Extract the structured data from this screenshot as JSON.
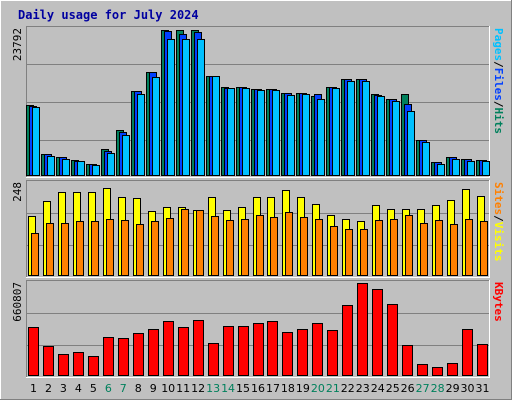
{
  "chart_data": {
    "type": "bar",
    "title": "Daily usage for July 2024",
    "x": [
      "1",
      "2",
      "3",
      "4",
      "5",
      "6",
      "7",
      "8",
      "9",
      "10",
      "11",
      "12",
      "13",
      "14",
      "15",
      "16",
      "17",
      "18",
      "19",
      "20",
      "21",
      "22",
      "23",
      "24",
      "25",
      "26",
      "27",
      "28",
      "29",
      "30",
      "31"
    ],
    "weekend_days": [
      "6",
      "7",
      "13",
      "14",
      "20",
      "21",
      "27",
      "28"
    ],
    "colors": {
      "background": "#c0c0c0",
      "plot": "#c0c0c0",
      "gridline": "#808080",
      "hits": "#00805c",
      "files": "#0040ff",
      "pages": "#00c0ff",
      "visits": "#ffff00",
      "sites": "#ff8000",
      "kbytes": "#ff0000",
      "title": "#0000a0",
      "weekday_label": "#000000",
      "weekend_label": "#00805c"
    },
    "panels": [
      {
        "name": "hits-files-pages",
        "ymax_label": "23792",
        "ylim": [
          0,
          23792
        ],
        "labels": [
          {
            "text": "Hits",
            "color": "#00805c"
          },
          {
            "text": "Files",
            "color": "#0040ff"
          },
          {
            "text": "Pages",
            "color": "#00c0ff"
          }
        ],
        "separator": "/",
        "series": [
          {
            "name": "Hits",
            "color": "#00805c",
            "values": [
              11500,
              3500,
              3000,
              2600,
              2000,
              4400,
              7500,
              13800,
              16800,
              23700,
              23700,
              23700,
              16200,
              14400,
              14400,
              14100,
              14100,
              13400,
              13500,
              13000,
              14400,
              15700,
              15700,
              13200,
              12500,
              13200,
              5800,
              2300,
              3100,
              2700,
              2600
            ]
          },
          {
            "name": "Files",
            "color": "#0040ff",
            "values": [
              11400,
              3500,
              3000,
              2500,
              1900,
              4000,
              7100,
              13800,
              16800,
              23500,
              23000,
              23300,
              16200,
              14300,
              14400,
              14100,
              14100,
              13400,
              13500,
              13200,
              14400,
              15700,
              15700,
              13100,
              12500,
              11600,
              5800,
              2300,
              3100,
              2700,
              2600
            ]
          },
          {
            "name": "Pages",
            "color": "#00c0ff",
            "values": [
              11100,
              3300,
              2800,
              2400,
              1800,
              3700,
              6700,
              13200,
              16100,
              22200,
              22200,
              22200,
              16200,
              14300,
              14300,
              14000,
              14000,
              13100,
              13200,
              12500,
              14200,
              15400,
              15400,
              13000,
              12200,
              10600,
              5500,
              2000,
              2800,
              2500,
              2400
            ]
          }
        ]
      },
      {
        "name": "visits-sites",
        "ymax_label": "248",
        "ylim": [
          0,
          248
        ],
        "labels": [
          {
            "text": "Visits",
            "color": "#ffff00"
          },
          {
            "text": "Sites",
            "color": "#ff8000"
          }
        ],
        "separator": "/",
        "series": [
          {
            "name": "Visits",
            "color": "#ffff00",
            "values": [
              160,
              199,
              225,
              225,
              225,
              236,
              212,
              207,
              174,
              185,
              185,
              176,
              212,
              175,
              185,
              212,
              212,
              230,
              212,
              192,
              163,
              152,
              148,
              190,
              180,
              180,
              180,
              190,
              202,
              232,
              213
            ]
          },
          {
            "name": "Sites",
            "color": "#ff8000",
            "values": [
              115,
              142,
              141,
              148,
              147,
              152,
              149,
              140,
              146,
              154,
              178,
              175,
              159,
              149,
              152,
              163,
              158,
              171,
              158,
              151,
              134,
              126,
              126,
              150,
              153,
              162,
              141,
              149,
              140,
              153,
              147
            ]
          }
        ]
      },
      {
        "name": "kbytes",
        "ymax_label": "660807",
        "ylim": [
          0,
          660807
        ],
        "labels": [
          {
            "text": "KBytes",
            "color": "#ff0000"
          }
        ],
        "separator": "",
        "series": [
          {
            "name": "KBytes",
            "color": "#ff0000",
            "values": [
              350000,
              216000,
              156000,
              168000,
              145000,
              276000,
              270000,
              306000,
              331000,
              390000,
              350000,
              398000,
              238000,
              357000,
              357000,
              377000,
              390000,
              312000,
              334000,
              377000,
              325000,
              508000,
              660000,
              615000,
              510000,
              220000,
              85000,
              66000,
              91000,
              335000,
              230000
            ]
          }
        ]
      }
    ]
  }
}
